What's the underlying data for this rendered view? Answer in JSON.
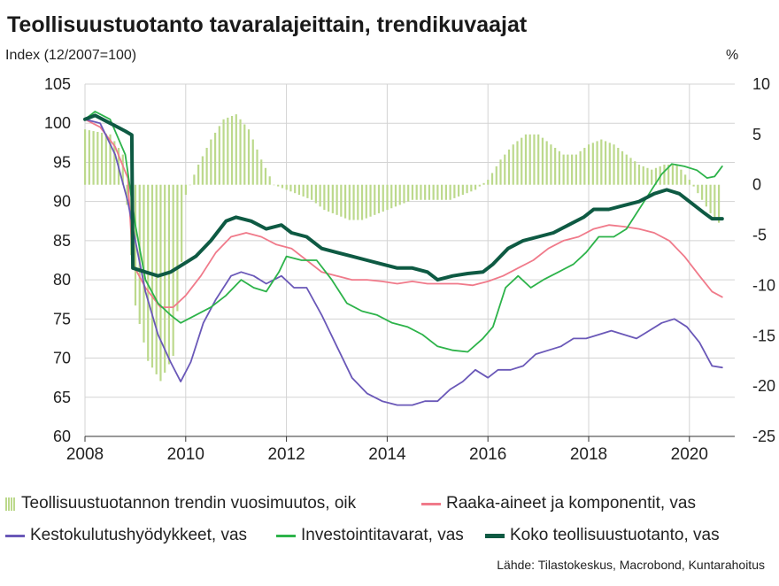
{
  "title": "Teollisuustuotanto tavaralajeittain, trendikuvaajat",
  "left_axis_label": "Index (12/2007=100)",
  "right_axis_label": "%",
  "source": "Lähde: Tilastokeskus, Macrobond, Kuntarahoitus",
  "legend": [
    {
      "label": "Teollisuustuotannon trendin vuosimuutos, oik",
      "color": "#bcd98c",
      "kind": "bar"
    },
    {
      "label": "Raaka-aineet ja komponentit, vas",
      "color": "#f07a8a",
      "kind": "line"
    },
    {
      "label": "Kestokulutushyödykkeet, vas",
      "color": "#6a58b8",
      "kind": "line"
    },
    {
      "label": "Investointitavarat, vas",
      "color": "#2db34a",
      "kind": "line"
    },
    {
      "label": "Koko teollisuustuotanto, vas",
      "color": "#0e5a43",
      "kind": "thick-line"
    }
  ],
  "chart_data": {
    "type": "line",
    "title": "Teollisuustuotanto tavaralajeittain, trendikuvaajat",
    "xlabel": "",
    "ylabel": "Index (12/2007=100)",
    "y2label": "%",
    "xlim": [
      2008.0,
      2020.9
    ],
    "ylim": [
      60,
      105
    ],
    "y2lim": [
      -25,
      10
    ],
    "x_ticks": [
      2008,
      2010,
      2012,
      2014,
      2016,
      2018,
      2020
    ],
    "y_ticks": [
      60,
      65,
      70,
      75,
      80,
      85,
      90,
      95,
      100,
      105
    ],
    "y2_ticks": [
      -25,
      -20,
      -15,
      -10,
      -5,
      0,
      5,
      10
    ],
    "grid": true,
    "legend_position": "bottom",
    "bars": {
      "name": "Teollisuustuotannon trendin vuosimuutos, oik",
      "axis": "right",
      "color": "#bcd98c",
      "x": [
        2008.0,
        2008.5,
        2008.75,
        2009.0,
        2009.25,
        2009.5,
        2009.75,
        2009.9,
        2010.0,
        2010.25,
        2010.5,
        2010.75,
        2011.0,
        2011.25,
        2011.5,
        2011.75,
        2012.0,
        2012.25,
        2012.5,
        2012.75,
        2013.0,
        2013.25,
        2013.5,
        2013.75,
        2014.0,
        2014.25,
        2014.5,
        2014.75,
        2015.0,
        2015.25,
        2015.5,
        2015.75,
        2016.0,
        2016.25,
        2016.5,
        2016.75,
        2017.0,
        2017.25,
        2017.5,
        2017.75,
        2018.0,
        2018.25,
        2018.5,
        2018.75,
        2019.0,
        2019.25,
        2019.5,
        2019.75,
        2020.0,
        2020.25,
        2020.5,
        2020.65
      ],
      "values": [
        5.5,
        5.0,
        3.0,
        -12.0,
        -17.5,
        -19.5,
        -17.0,
        -9.0,
        -1.0,
        2.0,
        4.5,
        6.5,
        7.0,
        5.5,
        2.5,
        0.0,
        -0.5,
        -1.0,
        -1.5,
        -2.5,
        -3.0,
        -3.5,
        -3.5,
        -3.0,
        -2.5,
        -2.0,
        -1.5,
        -1.5,
        -1.5,
        -1.5,
        -1.0,
        -0.5,
        0.5,
        2.5,
        4.0,
        5.0,
        5.0,
        4.0,
        3.0,
        3.0,
        4.0,
        4.5,
        4.0,
        3.0,
        2.0,
        1.5,
        2.0,
        2.0,
        0.5,
        -1.5,
        -3.5,
        -4.0
      ]
    },
    "series": [
      {
        "name": "Raaka-aineet ja komponentit, vas",
        "axis": "left",
        "color": "#f07a8a",
        "x": [
          2008.0,
          2008.3,
          2008.6,
          2008.85,
          2008.95,
          2009.2,
          2009.5,
          2009.75,
          2010.0,
          2010.3,
          2010.6,
          2010.9,
          2011.2,
          2011.5,
          2011.8,
          2012.1,
          2012.4,
          2012.7,
          2013.0,
          2013.3,
          2013.6,
          2013.9,
          2014.2,
          2014.5,
          2014.8,
          2015.1,
          2015.4,
          2015.7,
          2016.0,
          2016.3,
          2016.6,
          2016.9,
          2017.2,
          2017.5,
          2017.8,
          2018.1,
          2018.4,
          2018.7,
          2019.0,
          2019.3,
          2019.6,
          2019.9,
          2020.2,
          2020.45,
          2020.65
        ],
        "values": [
          100.5,
          99.5,
          97.0,
          93.0,
          82.0,
          79.0,
          76.5,
          76.5,
          78.0,
          80.5,
          83.5,
          85.5,
          86.0,
          85.5,
          84.5,
          84.0,
          82.5,
          81.0,
          80.5,
          80.0,
          80.0,
          79.8,
          79.5,
          79.8,
          79.5,
          79.5,
          79.5,
          79.3,
          79.8,
          80.5,
          81.5,
          82.5,
          84.0,
          85.0,
          85.5,
          86.5,
          87.0,
          86.8,
          86.5,
          86.0,
          85.0,
          83.0,
          80.5,
          78.5,
          77.8
        ]
      },
      {
        "name": "Kestokulutushyödykkeet, vas",
        "axis": "left",
        "color": "#6a58b8",
        "x": [
          2008.0,
          2008.3,
          2008.6,
          2008.85,
          2009.0,
          2009.2,
          2009.45,
          2009.7,
          2009.9,
          2010.1,
          2010.35,
          2010.6,
          2010.9,
          2011.1,
          2011.35,
          2011.6,
          2011.9,
          2012.15,
          2012.4,
          2012.7,
          2013.0,
          2013.3,
          2013.6,
          2013.9,
          2014.2,
          2014.5,
          2014.75,
          2015.0,
          2015.25,
          2015.5,
          2015.75,
          2016.0,
          2016.2,
          2016.45,
          2016.7,
          2016.95,
          2017.2,
          2017.45,
          2017.7,
          2017.95,
          2018.2,
          2018.45,
          2018.7,
          2018.95,
          2019.2,
          2019.45,
          2019.7,
          2019.95,
          2020.2,
          2020.45,
          2020.65
        ],
        "values": [
          100.5,
          100.0,
          96.0,
          90.0,
          85.0,
          78.5,
          73.0,
          69.5,
          67.0,
          69.5,
          74.5,
          77.5,
          80.5,
          81.0,
          80.5,
          79.5,
          80.5,
          79.0,
          79.0,
          75.5,
          71.5,
          67.5,
          65.5,
          64.5,
          64.0,
          64.0,
          64.5,
          64.5,
          66.0,
          67.0,
          68.5,
          67.5,
          68.5,
          68.5,
          69.0,
          70.5,
          71.0,
          71.5,
          72.5,
          72.5,
          73.0,
          73.5,
          73.0,
          72.5,
          73.5,
          74.5,
          75.0,
          74.0,
          72.0,
          69.0,
          68.8
        ]
      },
      {
        "name": "Investointitavarat, vas",
        "axis": "left",
        "color": "#2db34a",
        "x": [
          2008.0,
          2008.2,
          2008.5,
          2008.8,
          2009.0,
          2009.2,
          2009.45,
          2009.7,
          2009.9,
          2010.2,
          2010.5,
          2010.8,
          2011.1,
          2011.35,
          2011.6,
          2011.85,
          2012.0,
          2012.3,
          2012.6,
          2012.9,
          2013.2,
          2013.5,
          2013.8,
          2014.1,
          2014.4,
          2014.7,
          2015.0,
          2015.3,
          2015.6,
          2015.9,
          2016.1,
          2016.35,
          2016.6,
          2016.85,
          2017.1,
          2017.4,
          2017.7,
          2017.95,
          2018.2,
          2018.5,
          2018.75,
          2019.0,
          2019.2,
          2019.45,
          2019.65,
          2019.9,
          2020.15,
          2020.35,
          2020.5,
          2020.65
        ],
        "values": [
          100.5,
          101.5,
          100.5,
          96.0,
          87.0,
          80.0,
          77.0,
          75.5,
          74.5,
          75.5,
          76.5,
          78.0,
          80.0,
          79.0,
          78.5,
          81.0,
          83.0,
          82.5,
          82.5,
          80.0,
          77.0,
          76.0,
          75.5,
          74.5,
          74.0,
          73.0,
          71.5,
          71.0,
          70.8,
          72.5,
          74.0,
          79.0,
          80.5,
          79.0,
          80.0,
          81.0,
          82.0,
          83.5,
          85.5,
          85.5,
          86.5,
          89.0,
          91.0,
          93.5,
          94.8,
          94.5,
          94.0,
          93.0,
          93.2,
          94.5
        ]
      },
      {
        "name": "Koko teollisuustuotanto, vas",
        "axis": "left",
        "color": "#0e5a43",
        "x": [
          2008.0,
          2008.2,
          2008.5,
          2008.8,
          2008.93,
          2008.95,
          2009.2,
          2009.45,
          2009.7,
          2009.95,
          2010.2,
          2010.5,
          2010.8,
          2011.0,
          2011.3,
          2011.6,
          2011.9,
          2012.1,
          2012.4,
          2012.7,
          2013.0,
          2013.3,
          2013.6,
          2013.9,
          2014.2,
          2014.5,
          2014.8,
          2015.0,
          2015.3,
          2015.6,
          2015.9,
          2016.1,
          2016.4,
          2016.7,
          2017.0,
          2017.3,
          2017.6,
          2017.9,
          2018.1,
          2018.4,
          2018.7,
          2019.0,
          2019.3,
          2019.55,
          2019.8,
          2020.1,
          2020.3,
          2020.45,
          2020.65
        ],
        "values": [
          100.5,
          101.0,
          100.0,
          99.0,
          98.5,
          81.5,
          81.0,
          80.5,
          81.0,
          82.0,
          83.0,
          85.0,
          87.5,
          88.0,
          87.5,
          86.5,
          87.0,
          86.0,
          85.5,
          84.0,
          83.5,
          83.0,
          82.5,
          82.0,
          81.5,
          81.5,
          81.0,
          80.0,
          80.5,
          80.8,
          81.0,
          82.0,
          84.0,
          85.0,
          85.5,
          86.0,
          87.0,
          88.0,
          89.0,
          89.0,
          89.5,
          90.0,
          91.0,
          91.5,
          91.0,
          89.5,
          88.5,
          87.8,
          87.8
        ]
      }
    ]
  }
}
